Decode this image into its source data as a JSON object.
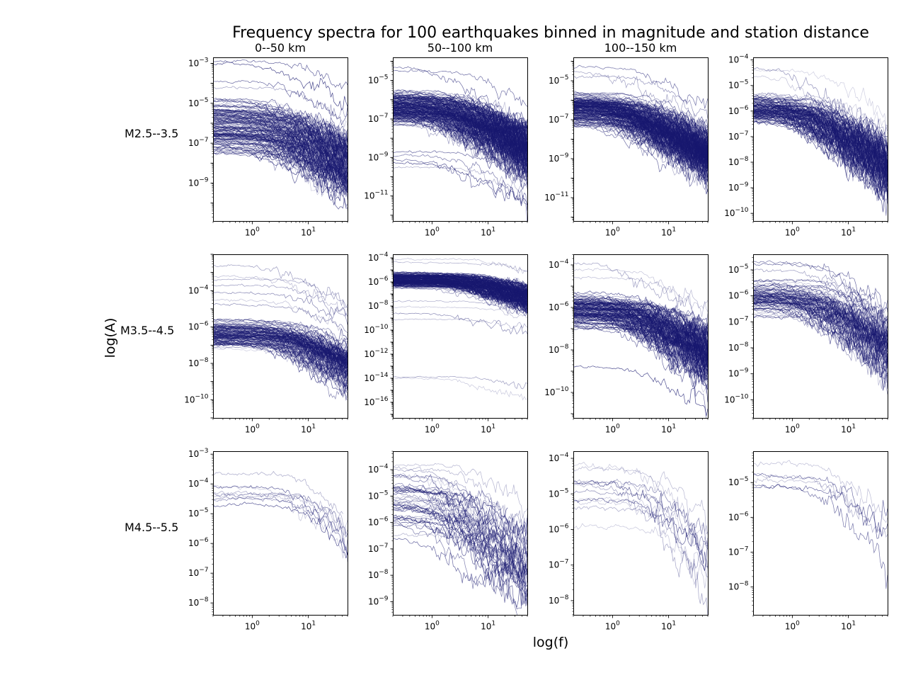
{
  "figure": {
    "title": "Frequency spectra for 100 earthquakes binned in magnitude and station distance",
    "xlabel": "log(f)",
    "ylabel": "log(A)",
    "col_titles": [
      "0--50 km",
      "50--100 km",
      "100--150 km",
      ""
    ],
    "row_labels": [
      "M2.5--3.5",
      "M3.5--4.5",
      "M4.5--5.5"
    ],
    "line_color": "#191970"
  },
  "chart_data": {
    "type": "line",
    "title": "Frequency spectra for 100 earthquakes binned in magnitude and station distance",
    "xlabel": "log(f)",
    "ylabel": "log(A)",
    "xscale": "log",
    "yscale": "log",
    "xlim": [
      0.2,
      50
    ],
    "xticks": [
      1,
      10
    ],
    "grid": false,
    "legend": "none",
    "panels": [
      {
        "row": 0,
        "col": 0,
        "magnitude": "M2.5--3.5",
        "distance": "0--50 km",
        "n_series": 150,
        "ylim_exp": [
          -10.9,
          -2.7
        ],
        "yticks_exp": [
          -9,
          -7,
          -5,
          -3
        ],
        "level_range_exp": [
          -7.5,
          -4.8
        ],
        "outliers_exp": [
          -2.9,
          -3.0,
          -3.9,
          -4.2
        ],
        "corner_range": [
          0.8,
          8
        ],
        "falloff_range": [
          1.1,
          1.7
        ]
      },
      {
        "row": 0,
        "col": 1,
        "magnitude": "M2.5--3.5",
        "distance": "50--100 km",
        "n_series": 200,
        "ylim_exp": [
          -12.3,
          -3.8
        ],
        "yticks_exp": [
          -11,
          -9,
          -7,
          -5
        ],
        "level_range_exp": [
          -7.3,
          -5.5
        ],
        "outliers_exp": [
          -4.3,
          -4.5,
          -8.7,
          -8.9,
          -9.1,
          -9.3,
          -9.5
        ],
        "corner_range": [
          0.6,
          6
        ],
        "falloff_range": [
          1.2,
          1.8
        ]
      },
      {
        "row": 0,
        "col": 2,
        "magnitude": "M2.5--3.5",
        "distance": "100--150 km",
        "n_series": 200,
        "ylim_exp": [
          -12.2,
          -3.8
        ],
        "yticks_exp": [
          -11,
          -9,
          -7,
          -5
        ],
        "level_range_exp": [
          -7.3,
          -5.6
        ],
        "outliers_exp": [
          -4.3,
          -4.5,
          -4.8
        ],
        "corner_range": [
          0.5,
          5
        ],
        "falloff_range": [
          1.3,
          1.8
        ]
      },
      {
        "row": 0,
        "col": 3,
        "magnitude": "M2.5--3.5",
        "distance": "",
        "n_series": 120,
        "ylim_exp": [
          -10.3,
          -3.9
        ],
        "yticks_exp": [
          -10,
          -9,
          -8,
          -7,
          -6,
          -5,
          -4
        ],
        "level_range_exp": [
          -6.5,
          -5.3
        ],
        "outliers_exp": [
          -4.3,
          -4.4,
          -4.6
        ],
        "corner_range": [
          0.5,
          6
        ],
        "falloff_range": [
          1.2,
          1.8
        ]
      },
      {
        "row": 1,
        "col": 0,
        "magnitude": "M3.5--4.5",
        "distance": "0--50 km",
        "n_series": 120,
        "ylim_exp": [
          -11.0,
          -2.0
        ],
        "yticks_exp": [
          -10,
          -8,
          -6,
          -4
        ],
        "level_range_exp": [
          -7.2,
          -5.6
        ],
        "outliers_exp": [
          -2.6,
          -3.2,
          -3.4,
          -3.7,
          -4.1,
          -4.5,
          -4.8
        ],
        "corner_range": [
          1.5,
          10
        ],
        "falloff_range": [
          1.2,
          2.0
        ]
      },
      {
        "row": 1,
        "col": 1,
        "magnitude": "M3.5--4.5",
        "distance": "50--100 km",
        "n_series": 200,
        "ylim_exp": [
          -17.3,
          -3.7
        ],
        "yticks_exp": [
          -16,
          -14,
          -12,
          -10,
          -8,
          -6,
          -4
        ],
        "level_range_exp": [
          -6.5,
          -5.2
        ],
        "outliers_exp": [
          -4.1,
          -4.4,
          -7.6,
          -8.1,
          -8.6,
          -9.1,
          -13.9,
          -14.0
        ],
        "corner_range": [
          1.5,
          12
        ],
        "falloff_range": [
          1.0,
          1.7
        ]
      },
      {
        "row": 1,
        "col": 2,
        "magnitude": "M3.5--4.5",
        "distance": "100--150 km",
        "n_series": 150,
        "ylim_exp": [
          -11.2,
          -3.5
        ],
        "yticks_exp": [
          -10,
          -8,
          -6,
          -4
        ],
        "level_range_exp": [
          -7.0,
          -5.3
        ],
        "outliers_exp": [
          -3.9,
          -4.2,
          -4.6,
          -8.8
        ],
        "corner_range": [
          0.7,
          8
        ],
        "falloff_range": [
          1.2,
          1.9
        ]
      },
      {
        "row": 1,
        "col": 3,
        "magnitude": "M3.5--4.5",
        "distance": "",
        "n_series": 80,
        "ylim_exp": [
          -10.7,
          -4.4
        ],
        "yticks_exp": [
          -10,
          -9,
          -8,
          -7,
          -6,
          -5
        ],
        "level_range_exp": [
          -6.8,
          -5.4
        ],
        "outliers_exp": [
          -4.7,
          -4.8,
          -5.0
        ],
        "corner_range": [
          0.8,
          8
        ],
        "falloff_range": [
          1.2,
          1.8
        ]
      },
      {
        "row": 2,
        "col": 0,
        "magnitude": "M4.5--5.5",
        "distance": "0--50 km",
        "n_series": 9,
        "ylim_exp": [
          -8.4,
          -2.9
        ],
        "yticks_exp": [
          -8,
          -7,
          -6,
          -5,
          -4,
          -3
        ],
        "level_range_exp": [
          -5.2,
          -3.2
        ],
        "outliers_exp": [],
        "corner_range": [
          3,
          12
        ],
        "falloff_range": [
          1.5,
          2.2
        ]
      },
      {
        "row": 2,
        "col": 1,
        "magnitude": "M4.5--5.5",
        "distance": "50--100 km",
        "n_series": 45,
        "ylim_exp": [
          -9.5,
          -3.3
        ],
        "yticks_exp": [
          -9,
          -8,
          -7,
          -6,
          -5,
          -4
        ],
        "level_range_exp": [
          -6.6,
          -3.6
        ],
        "outliers_exp": [],
        "corner_range": [
          0.5,
          6
        ],
        "falloff_range": [
          1.2,
          2.0
        ]
      },
      {
        "row": 2,
        "col": 2,
        "magnitude": "M4.5--5.5",
        "distance": "100--150 km",
        "n_series": 12,
        "ylim_exp": [
          -8.4,
          -3.8
        ],
        "yticks_exp": [
          -8,
          -7,
          -6,
          -5,
          -4
        ],
        "level_range_exp": [
          -6.2,
          -4.0
        ],
        "outliers_exp": [],
        "corner_range": [
          1.5,
          8
        ],
        "falloff_range": [
          1.3,
          2.0
        ]
      },
      {
        "row": 2,
        "col": 3,
        "magnitude": "M4.5--5.5",
        "distance": "",
        "n_series": 6,
        "ylim_exp": [
          -8.8,
          -4.1
        ],
        "yticks_exp": [
          -8,
          -7,
          -6,
          -5
        ],
        "level_range_exp": [
          -5.5,
          -4.4
        ],
        "outliers_exp": [],
        "corner_range": [
          1.5,
          6
        ],
        "falloff_range": [
          1.2,
          1.8
        ]
      }
    ]
  }
}
